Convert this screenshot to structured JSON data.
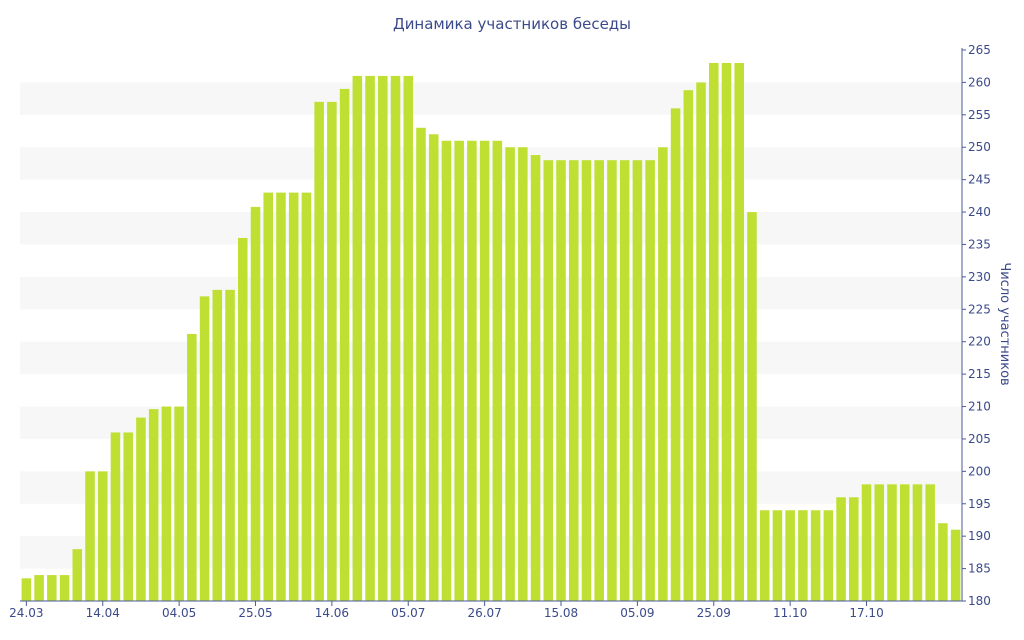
{
  "chart_data": {
    "type": "bar",
    "title": "Динамика участников беседы",
    "ylabel": "Число участников",
    "xlabel": "",
    "ylim": [
      180,
      265
    ],
    "y_ticks": [
      180,
      185,
      190,
      195,
      200,
      205,
      210,
      215,
      220,
      225,
      230,
      235,
      240,
      245,
      250,
      255,
      260,
      265
    ],
    "x_tick_labels": [
      "24.03",
      "14.04",
      "04.05",
      "25.05",
      "14.06",
      "05.07",
      "26.07",
      "15.08",
      "05.09",
      "25.09",
      "11.10",
      "17.10"
    ],
    "x_tick_positions": [
      0,
      6,
      12,
      18,
      24,
      30,
      36,
      42,
      48,
      54,
      60,
      66
    ],
    "y_axis_side": "right",
    "grid": "alternating horizontal bands",
    "bar_color": "#bfe033",
    "values": [
      183.5,
      184,
      184,
      184,
      188,
      200,
      200,
      206,
      206,
      208.3,
      209.6,
      210,
      210,
      221.2,
      227,
      228,
      228,
      236,
      240.8,
      243,
      243,
      243,
      243,
      257,
      257,
      259,
      261,
      261,
      261,
      261,
      261,
      253,
      252,
      251,
      251,
      251,
      251,
      251,
      250,
      250,
      248.8,
      248,
      248,
      248,
      248,
      248,
      248,
      248,
      248,
      248,
      250,
      256,
      258.8,
      260,
      263,
      263,
      263,
      240,
      194,
      194,
      194,
      194,
      194,
      194,
      196,
      196,
      198,
      198,
      198,
      198,
      198,
      198,
      192,
      191
    ]
  }
}
